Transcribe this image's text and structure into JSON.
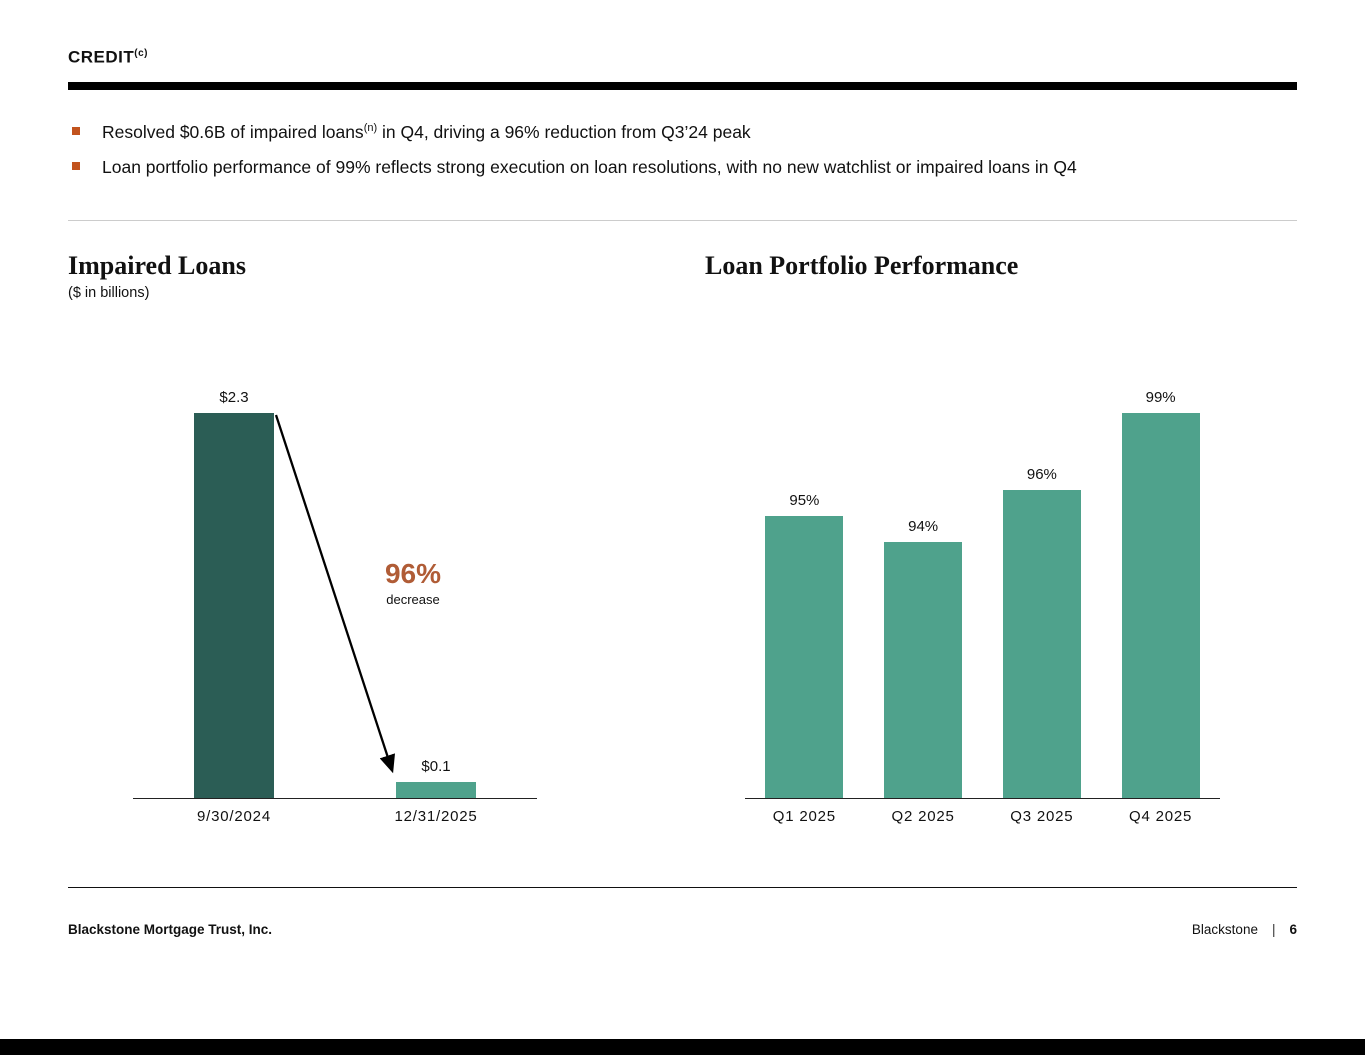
{
  "slide": {
    "header": {
      "title": "CREDIT",
      "superscript": "(c)"
    },
    "bullets": [
      {
        "lead": "Resolved $0.6B of impaired loans",
        "superscript": "(n)",
        "rest": " in Q4, driving a 96% reduction from Q3’24 peak"
      },
      {
        "lead": "Loan portfolio performance of 99% reflects strong execution on loan resolutions, with no new watchlist or impaired loans in Q4",
        "superscript": "",
        "rest": ""
      }
    ],
    "footer": {
      "company": "Blackstone Mortgage Trust, Inc.",
      "brand": "Blackstone",
      "separator": "|",
      "page_number": "6"
    }
  },
  "left_chart": {
    "title": "Impaired Loans",
    "subtitle": "($ in billions)",
    "annotation": {
      "value": "96%",
      "label": "decrease"
    }
  },
  "right_chart": {
    "title": "Loan Portfolio Performance"
  },
  "chart_data": [
    {
      "type": "bar",
      "title": "Impaired Loans",
      "ylabel": "$ in billions",
      "categories": [
        "9/30/2024",
        "12/31/2025"
      ],
      "values": [
        2.3,
        0.1
      ],
      "data_labels": [
        "$2.3",
        "$0.1"
      ],
      "bar_colors": [
        "#2b5d55",
        "#4fa28c"
      ],
      "ylim": [
        0,
        2.5
      ],
      "grid": false,
      "legend": "none",
      "annotation": "96% decrease"
    },
    {
      "type": "bar",
      "title": "Loan Portfolio Performance",
      "categories": [
        "Q1 2025",
        "Q2 2025",
        "Q3 2025",
        "Q4 2025"
      ],
      "values": [
        95,
        94,
        96,
        99
      ],
      "data_labels": [
        "95%",
        "94%",
        "96%",
        "99%"
      ],
      "bar_color": "#4fa28c",
      "ylim": [
        84,
        100
      ],
      "grid": false,
      "legend": "none"
    }
  ],
  "colors": {
    "accent_orange": "#c2531d",
    "accent_rust": "#b05c36",
    "dark_teal": "#2b5d55",
    "teal": "#4fa28c",
    "rule_black": "#000000"
  }
}
